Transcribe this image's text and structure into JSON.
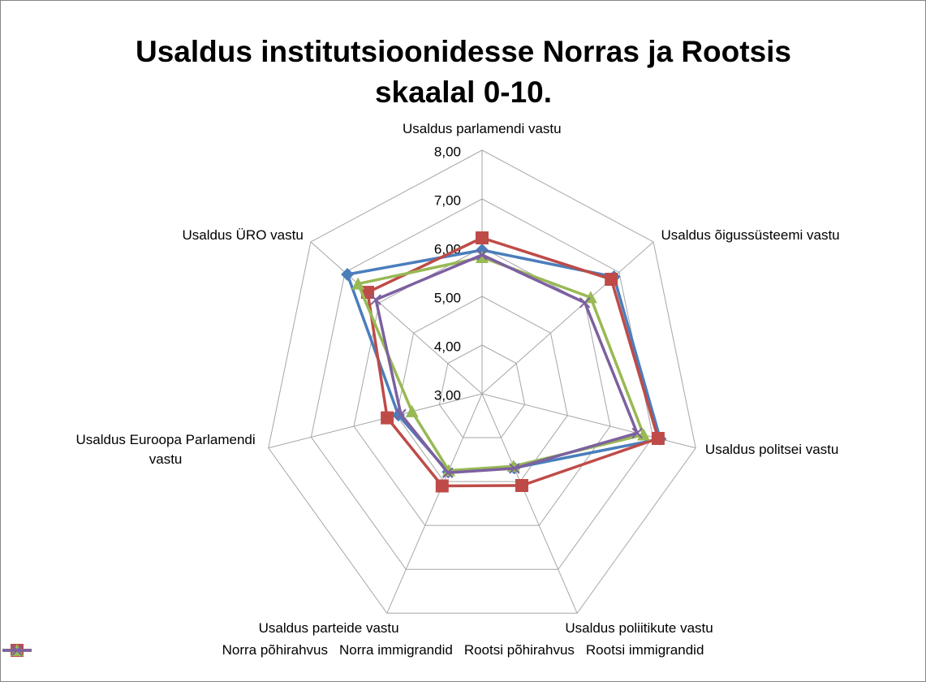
{
  "chart_data": {
    "type": "radar",
    "title": "Usaldus institutsioonidesse Norras ja Rootsis skaalal 0-10.",
    "categories": [
      "Usaldus parlamendi vastu",
      "Usaldus õigussüsteemi vastu",
      "Usaldus politsei vastu",
      "Usaldus poliitikute vastu",
      "Usaldus parteide vastu",
      "Usaldus Euroopa Parlamendi vastu",
      "Usaldus ÜRO vastu"
    ],
    "series": [
      {
        "name": "Norra põhirahvus",
        "color": "#4a7ebb",
        "marker": "diamond",
        "values": [
          5.95,
          6.85,
          7.17,
          4.69,
          4.78,
          4.96,
          6.93
        ]
      },
      {
        "name": "Norra immigrandid",
        "color": "#be4b48",
        "marker": "square",
        "values": [
          6.2,
          6.77,
          7.12,
          5.09,
          5.1,
          5.22,
          6.34
        ]
      },
      {
        "name": "Rootsi põhirahvus",
        "color": "#98b954",
        "marker": "triangle",
        "values": [
          5.8,
          6.17,
          6.78,
          4.65,
          4.75,
          4.64,
          6.62
        ]
      },
      {
        "name": "Rootsi immigrandid",
        "color": "#7d60a0",
        "marker": "x",
        "values": [
          5.85,
          6.0,
          6.63,
          4.7,
          4.8,
          4.9,
          6.1
        ]
      }
    ],
    "ylim": [
      3,
      8
    ],
    "yticks": [
      {
        "value": 3,
        "label": "3,00"
      },
      {
        "value": 4,
        "label": "4,00"
      },
      {
        "value": 5,
        "label": "5,00"
      },
      {
        "value": 6,
        "label": "6,00"
      },
      {
        "value": 7,
        "label": "7,00"
      },
      {
        "value": 8,
        "label": "8,00"
      }
    ],
    "grid": true,
    "legend": "bottom"
  }
}
